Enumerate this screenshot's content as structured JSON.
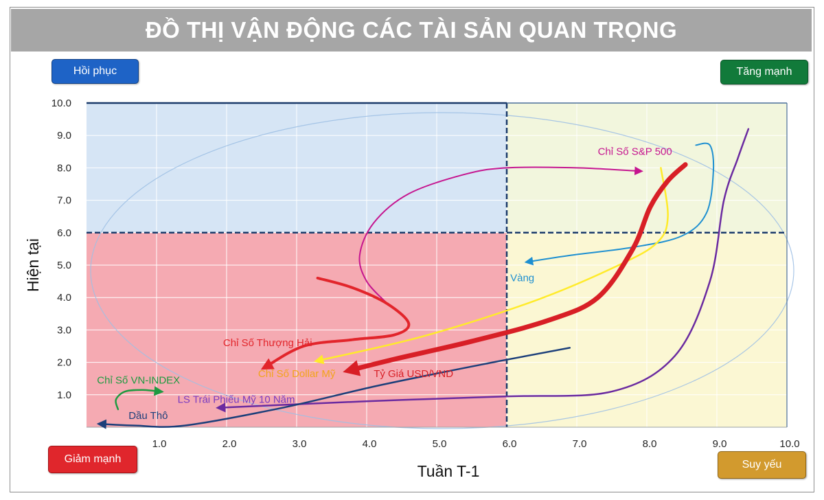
{
  "title": "ĐỒ THỊ VẬN ĐỘNG CÁC TÀI SẢN QUAN TRỌNG",
  "quadrants": {
    "top_left": "Hồi phục",
    "top_right": "Tăng mạnh",
    "bottom_left": "Giảm mạnh",
    "bottom_right": "Suy yếu"
  },
  "colors": {
    "recover": "#1e63c6",
    "strong": "#117a3a",
    "fall": "#e0262c",
    "weak": "#d29a2e",
    "title_bg": "#a6a6a6"
  },
  "chart_data": {
    "type": "line",
    "title": "ĐỒ THỊ VẬN ĐỘNG CÁC TÀI SẢN QUAN TRỌNG",
    "xlabel": "Tuần T-1",
    "ylabel": "Hiện tại",
    "xlim": [
      0,
      10
    ],
    "ylim": [
      0,
      10
    ],
    "x_ticks": [
      "",
      "1.0",
      "2.0",
      "3.0",
      "4.0",
      "5.0",
      "6.0",
      "7.0",
      "8.0",
      "9.0",
      "10.0"
    ],
    "y_ticks": [
      "",
      "1.0",
      "2.0",
      "3.0",
      "4.0",
      "5.0",
      "6.0",
      "7.0",
      "8.0",
      "9.0",
      "10.0"
    ],
    "x_tick_values": [
      0,
      1,
      2,
      3,
      4,
      5,
      6,
      7,
      8,
      9,
      10
    ],
    "y_tick_values": [
      0,
      1,
      2,
      3,
      4,
      5,
      6,
      7,
      8,
      9,
      10
    ],
    "threshold": {
      "x": 6,
      "y": 6
    },
    "grid": true,
    "series": [
      {
        "name": "Chỉ Số S&P 500",
        "color": "#c5158f",
        "width": 2,
        "x": [
          4.3,
          4.0,
          3.9,
          4.1,
          4.6,
          5.4,
          6.0,
          7.0,
          7.9
        ],
        "y": [
          3.8,
          4.5,
          5.3,
          6.3,
          7.2,
          7.8,
          8.0,
          8.0,
          7.9
        ],
        "label_pos": [
          7.3,
          8.4
        ],
        "label_anchor": "start"
      },
      {
        "name": "Vàng",
        "color": "#1d8fd1",
        "width": 2,
        "x": [
          8.7,
          8.9,
          8.95,
          8.85,
          8.5,
          7.8,
          6.9,
          6.3
        ],
        "y": [
          8.7,
          8.7,
          7.9,
          6.6,
          5.9,
          5.55,
          5.3,
          5.1
        ],
        "label_pos": [
          6.05,
          4.5
        ],
        "label_anchor": "start"
      },
      {
        "name": "Chỉ Số Thượng Hải",
        "color": "#e2252b",
        "width": 4,
        "x": [
          3.3,
          3.8,
          4.3,
          4.6,
          4.4,
          3.8,
          3.1,
          2.55
        ],
        "y": [
          4.6,
          4.3,
          3.8,
          3.2,
          2.85,
          2.7,
          2.5,
          1.85
        ],
        "label_pos": [
          1.95,
          2.5
        ],
        "label_anchor": "start"
      },
      {
        "name": "Chỉ Số Dollar Mỹ",
        "color": "#ffeb2a",
        "width": 2.5,
        "x": [
          8.2,
          8.3,
          8.15,
          7.6,
          6.4,
          4.8,
          3.3
        ],
        "y": [
          8.0,
          6.5,
          5.7,
          5.0,
          3.9,
          2.8,
          2.05
        ],
        "label_pos": [
          2.45,
          1.55
        ],
        "label_anchor": "start",
        "label_color": "#f2a41a"
      },
      {
        "name": "Tỷ Giá USD/VND",
        "color": "#d81f26",
        "width": 7,
        "x": [
          8.55,
          8.3,
          8.05,
          7.8,
          7.3,
          6.6,
          5.5,
          4.4,
          3.75
        ],
        "y": [
          8.1,
          7.6,
          6.8,
          5.5,
          4.0,
          3.3,
          2.65,
          2.1,
          1.75
        ],
        "label_pos": [
          4.1,
          1.55
        ],
        "label_anchor": "start"
      },
      {
        "name": "Chỉ Số VN-INDEX",
        "color": "#1f9a41",
        "width": 2.5,
        "x": [
          0.45,
          0.42,
          0.55,
          0.8,
          1.05
        ],
        "y": [
          0.55,
          0.85,
          1.1,
          1.15,
          1.1
        ],
        "label_pos": [
          0.15,
          1.35
        ],
        "label_anchor": "start"
      },
      {
        "name": "LS Trái Phiếu Mỹ 10 Năm",
        "color": "#6a2aa0",
        "width": 2.5,
        "x": [
          9.45,
          9.3,
          9.1,
          8.9,
          8.4,
          7.5,
          6.0,
          4.0,
          1.9
        ],
        "y": [
          9.2,
          8.3,
          7.0,
          4.5,
          2.2,
          1.1,
          0.95,
          0.8,
          0.6
        ],
        "label_pos": [
          1.3,
          0.75
        ],
        "label_anchor": "start",
        "label_color": "#7a3cc0"
      },
      {
        "name": "Dầu Thô",
        "color": "#1c3f7a",
        "width": 2.5,
        "x": [
          6.9,
          5.8,
          4.2,
          2.8,
          1.4,
          0.7,
          0.2
        ],
        "y": [
          2.45,
          2.0,
          1.3,
          0.6,
          0.05,
          0.05,
          0.1
        ],
        "label_pos": [
          0.6,
          0.25
        ],
        "label_anchor": "start"
      }
    ]
  }
}
